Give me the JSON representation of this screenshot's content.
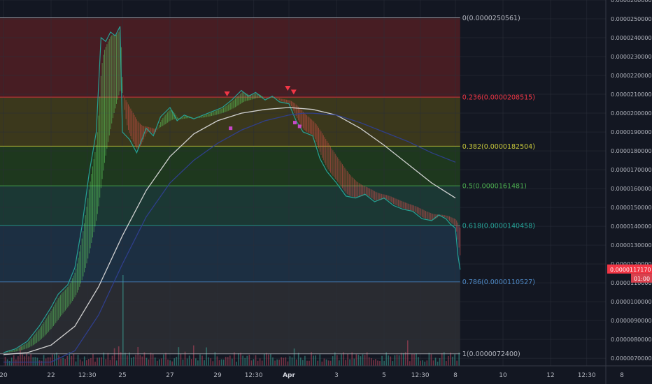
{
  "chart_data": {
    "type": "line",
    "title": "",
    "xlabel": "",
    "ylabel": "",
    "ylim": [
      6.6e-06,
      2.6e-05
    ],
    "grid": true,
    "y_ticks": [
      {
        "value": 2.6e-05,
        "label": "0.0000260000"
      },
      {
        "value": 2.5e-05,
        "label": "0.0000250000"
      },
      {
        "value": 2.4e-05,
        "label": "0.0000240000"
      },
      {
        "value": 2.3e-05,
        "label": "0.0000230000"
      },
      {
        "value": 2.2e-05,
        "label": "0.0000220000"
      },
      {
        "value": 2.1e-05,
        "label": "0.0000210000"
      },
      {
        "value": 2e-05,
        "label": "0.0000200000"
      },
      {
        "value": 1.9e-05,
        "label": "0.0000190000"
      },
      {
        "value": 1.8e-05,
        "label": "0.0000180000"
      },
      {
        "value": 1.7e-05,
        "label": "0.0000170000"
      },
      {
        "value": 1.6e-05,
        "label": "0.0000160000"
      },
      {
        "value": 1.5e-05,
        "label": "0.0000150000"
      },
      {
        "value": 1.4e-05,
        "label": "0.0000140000"
      },
      {
        "value": 1.3e-05,
        "label": "0.0000130000"
      },
      {
        "value": 1.2e-05,
        "label": "0.0000120000"
      },
      {
        "value": 1.1e-05,
        "label": "0.0000110000"
      },
      {
        "value": 1e-05,
        "label": "0.0000100000"
      },
      {
        "value": 9e-06,
        "label": "0.0000090000"
      },
      {
        "value": 8e-06,
        "label": "0.0000080000"
      },
      {
        "value": 7e-06,
        "label": "0.0000070000"
      }
    ],
    "x_ticks": [
      {
        "t": 0,
        "label": "20",
        "bold": false
      },
      {
        "t": 2,
        "label": "22",
        "bold": false
      },
      {
        "t": 3.52,
        "label": "12:30",
        "bold": false
      },
      {
        "t": 5,
        "label": "25",
        "bold": false
      },
      {
        "t": 7,
        "label": "27",
        "bold": false
      },
      {
        "t": 9,
        "label": "29",
        "bold": false
      },
      {
        "t": 10.52,
        "label": "12:30",
        "bold": false
      },
      {
        "t": 12,
        "label": "Apr",
        "bold": true
      },
      {
        "t": 14,
        "label": "3",
        "bold": false
      },
      {
        "t": 16,
        "label": "5",
        "bold": false
      },
      {
        "t": 17.52,
        "label": "12:30",
        "bold": false
      },
      {
        "t": 19,
        "label": "8",
        "bold": false
      },
      {
        "t": 21,
        "label": "10",
        "bold": false
      },
      {
        "t": 23,
        "label": "12",
        "bold": false
      },
      {
        "t": 24.52,
        "label": "12:30",
        "bold": false
      },
      {
        "t": 26,
        "label": "8",
        "bold": false
      }
    ],
    "fib_levels": [
      {
        "ratio": 0,
        "price": 2.50561e-05,
        "label": "0(0.0000250561)",
        "color": "#b2b5be",
        "fill": "#4a1d24"
      },
      {
        "ratio": 0.236,
        "price": 2.08515e-05,
        "label": "0.236(0.0000208515)",
        "color": "#f23645",
        "fill": "#3d3a1c"
      },
      {
        "ratio": 0.382,
        "price": 1.82504e-05,
        "label": "0.382(0.0000182504)",
        "color": "#c9c93b",
        "fill": "#1f3a1f"
      },
      {
        "ratio": 0.5,
        "price": 1.61481e-05,
        "label": "0.5(0.0000161481)",
        "color": "#4caf50",
        "fill": "#1b3a36"
      },
      {
        "ratio": 0.618,
        "price": 1.40458e-05,
        "label": "0.618(0.0000140458)",
        "color": "#26a69a",
        "fill": "#1c3045"
      },
      {
        "ratio": 0.786,
        "price": 1.10527e-05,
        "label": "0.786(0.0000110527)",
        "color": "#4f8bc9",
        "fill": "#2a2c33"
      },
      {
        "ratio": 1,
        "price": 7.24e-06,
        "label": "1(0.0000072400)",
        "color": "#b2b5be",
        "fill": null
      }
    ],
    "series": [
      {
        "name": "",
        "role": "price",
        "color": "#26a69a",
        "x": [
          0,
          0.5,
          1,
          1.5,
          2,
          2.3,
          2.7,
          3,
          3.3,
          3.6,
          3.9,
          4.1,
          4.3,
          4.5,
          4.7,
          4.9,
          5,
          5.3,
          5.6,
          6,
          6.3,
          6.6,
          7,
          7.3,
          7.6,
          8,
          8.4,
          8.8,
          9.2,
          9.6,
          10,
          10.3,
          10.6,
          11,
          11.3,
          11.6,
          12,
          12.3,
          12.6,
          13,
          13.3,
          13.6,
          14,
          14.4,
          14.8,
          15.2,
          15.6,
          16,
          16.4,
          16.8,
          17.2,
          17.6,
          18,
          18.3,
          18.6,
          18.8,
          19,
          19.1,
          19.2
        ],
        "y": [
          7.3e-06,
          7.5e-06,
          7.9e-06,
          8.7e-06,
          9.7e-06,
          1.04e-05,
          1.09e-05,
          1.18e-05,
          1.4e-05,
          1.68e-05,
          1.9e-05,
          2.4e-05,
          2.38e-05,
          2.43e-05,
          2.41e-05,
          2.46e-05,
          1.9e-05,
          1.86e-05,
          1.79e-05,
          1.92e-05,
          1.88e-05,
          1.98e-05,
          2.03e-05,
          1.96e-05,
          1.99e-05,
          1.97e-05,
          1.99e-05,
          2.01e-05,
          2.03e-05,
          2.07e-05,
          2.12e-05,
          2.09e-05,
          2.11e-05,
          2.07e-05,
          2.09e-05,
          2.06e-05,
          2.05e-05,
          1.96e-05,
          1.9e-05,
          1.88e-05,
          1.76e-05,
          1.69e-05,
          1.63e-05,
          1.56e-05,
          1.55e-05,
          1.57e-05,
          1.53e-05,
          1.55e-05,
          1.51e-05,
          1.49e-05,
          1.48e-05,
          1.44e-05,
          1.43e-05,
          1.46e-05,
          1.44e-05,
          1.41e-05,
          1.39e-05,
          1.25e-05,
          1.17e-05
        ]
      },
      {
        "name": "",
        "role": "ma-white",
        "color": "#d8d8d8",
        "x": [
          0,
          1,
          2,
          3,
          4,
          5,
          6,
          7,
          8,
          9,
          10,
          11,
          12,
          13,
          14,
          15,
          16,
          17,
          18,
          19
        ],
        "y": [
          7.2e-06,
          7.3e-06,
          7.7e-06,
          8.7e-06,
          1.08e-05,
          1.35e-05,
          1.59e-05,
          1.77e-05,
          1.89e-05,
          1.96e-05,
          2e-05,
          2.02e-05,
          2.03e-05,
          2.02e-05,
          1.99e-05,
          1.92e-05,
          1.83e-05,
          1.73e-05,
          1.63e-05,
          1.55e-05
        ]
      },
      {
        "name": "",
        "role": "ma-blue",
        "color": "#2f3f8f",
        "x": [
          0,
          2,
          3,
          4,
          5,
          6,
          7,
          8,
          9,
          10,
          11,
          12,
          12.6,
          13,
          14,
          15,
          16,
          17,
          18,
          19
        ],
        "y": [
          6.8e-06,
          6.8e-06,
          7.4e-06,
          9.3e-06,
          1.2e-05,
          1.45e-05,
          1.63e-05,
          1.75e-05,
          1.84e-05,
          1.91e-05,
          1.96e-05,
          1.99e-05,
          2e-05,
          2e-05,
          1.99e-05,
          1.95e-05,
          1.9e-05,
          1.85e-05,
          1.79e-05,
          1.74e-05
        ]
      }
    ],
    "annotations": {
      "current_price": {
        "value": 1.1717e-05,
        "label": "0.0000117170",
        "countdown": "01:00",
        "color": "#f23645"
      },
      "overlapped_axis_labels": [
        "0.0000120000",
        "0.0000110000"
      ],
      "sell_markers": [
        {
          "t": 9.4,
          "y": 2.1e-05
        },
        {
          "t": 11.95,
          "y": 2.13e-05
        },
        {
          "t": 12.2,
          "y": 2.11e-05
        }
      ],
      "buy_markers": [
        {
          "t": 9.55,
          "y": 1.92e-05
        },
        {
          "t": 12.25,
          "y": 1.95e-05
        },
        {
          "t": 12.45,
          "y": 1.93e-05
        }
      ]
    },
    "volume": {
      "color": "#26a69a",
      "max_bar_t": 5.0
    }
  }
}
